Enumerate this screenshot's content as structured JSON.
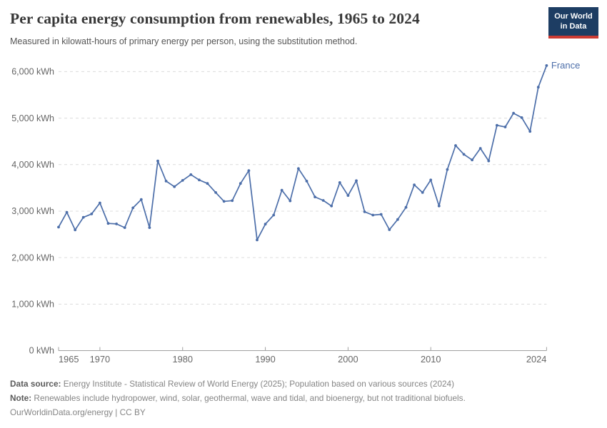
{
  "header": {
    "title": "Per capita energy consumption from renewables, 1965 to 2024",
    "subtitle": "Measured in kilowatt-hours of primary energy per person, using the substitution method.",
    "logo_line1": "Our World",
    "logo_line2": "in Data"
  },
  "colors": {
    "line": "#4c6ea9",
    "series_label": "#4c6ea9",
    "gridline": "#dcdcdc",
    "axis_line": "#a0a0a0",
    "axis_text": "#666666",
    "logo_bg": "#1d3d63",
    "logo_red": "#cc3b33"
  },
  "chart_data": {
    "type": "line",
    "title": "Per capita energy consumption from renewables, 1965 to 2024",
    "xlabel": "",
    "ylabel": "kilowatt-hours per person",
    "xlim": [
      1965,
      2024
    ],
    "ylim": [
      0,
      6000
    ],
    "grid": "horizontal-dashed",
    "legend_position": "end-of-line-label",
    "series": [
      {
        "name": "France",
        "years": [
          1965,
          1966,
          1967,
          1968,
          1969,
          1970,
          1971,
          1972,
          1973,
          1974,
          1975,
          1976,
          1977,
          1978,
          1979,
          1980,
          1981,
          1982,
          1983,
          1984,
          1985,
          1986,
          1987,
          1988,
          1989,
          1990,
          1991,
          1992,
          1993,
          1994,
          1995,
          1996,
          1997,
          1998,
          1999,
          2000,
          2001,
          2002,
          2003,
          2004,
          2005,
          2006,
          2007,
          2008,
          2009,
          2010,
          2011,
          2012,
          2013,
          2014,
          2015,
          2016,
          2017,
          2018,
          2019,
          2020,
          2021,
          2022,
          2023,
          2024
        ],
        "values": [
          2655,
          2975,
          2595,
          2865,
          2940,
          3175,
          2735,
          2725,
          2645,
          3070,
          3250,
          2645,
          4080,
          3645,
          3525,
          3660,
          3785,
          3670,
          3595,
          3400,
          3210,
          3225,
          3595,
          3870,
          2380,
          2720,
          2915,
          3450,
          3220,
          3915,
          3645,
          3305,
          3230,
          3110,
          3615,
          3335,
          3655,
          2985,
          2915,
          2930,
          2600,
          2820,
          3080,
          3565,
          3400,
          3670,
          3110,
          3895,
          4410,
          4220,
          4100,
          4350,
          4080,
          4845,
          4810,
          5105,
          5010,
          4715,
          5665,
          6130
        ]
      }
    ],
    "yticks": [
      {
        "value": 0,
        "label": "0 kWh"
      },
      {
        "value": 1000,
        "label": "1,000 kWh"
      },
      {
        "value": 2000,
        "label": "2,000 kWh"
      },
      {
        "value": 3000,
        "label": "3,000 kWh"
      },
      {
        "value": 4000,
        "label": "4,000 kWh"
      },
      {
        "value": 5000,
        "label": "5,000 kWh"
      },
      {
        "value": 6000,
        "label": "6,000 kWh"
      }
    ],
    "xticks": [
      {
        "year": 1965,
        "label": "1965",
        "anchor": "start"
      },
      {
        "year": 1970,
        "label": "1970",
        "anchor": "middle"
      },
      {
        "year": 1980,
        "label": "1980",
        "anchor": "middle"
      },
      {
        "year": 1990,
        "label": "1990",
        "anchor": "middle"
      },
      {
        "year": 2000,
        "label": "2000",
        "anchor": "middle"
      },
      {
        "year": 2010,
        "label": "2010",
        "anchor": "middle"
      },
      {
        "year": 2024,
        "label": "2024",
        "anchor": "end"
      }
    ]
  },
  "footer": {
    "datasource_label": "Data source:",
    "datasource_text": " Energy Institute - Statistical Review of World Energy (2025); Population based on various sources (2024)",
    "note_label": "Note:",
    "note_text": " Renewables include hydropower, wind, solar, geothermal, wave and tidal, and bioenergy, but not traditional biofuels.",
    "link_text": "OurWorldinData.org/energy | CC BY"
  }
}
